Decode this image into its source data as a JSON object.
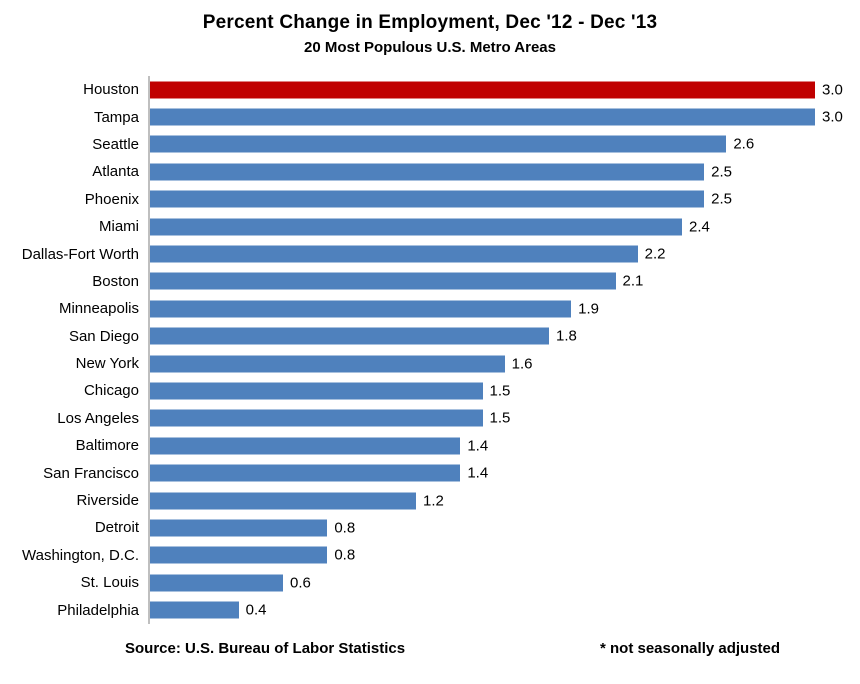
{
  "title": "Percent Change in Employment, Dec '12 - Dec '13",
  "subtitle": "20 Most Populous U.S. Metro Areas",
  "footer": {
    "source": "Source: U.S. Bureau of Labor Statistics",
    "note": "* not seasonally adjusted"
  },
  "colors": {
    "bar": "#4F81BD",
    "highlight": "#C00000",
    "axis": "#BFBFBF",
    "text": "#000000",
    "background": "#FFFFFF"
  },
  "chart_data": {
    "type": "bar",
    "orientation": "horizontal",
    "title": "Percent Change in Employment, Dec '12 - Dec '13",
    "subtitle": "20 Most Populous U.S. Metro Areas",
    "xlabel": "",
    "ylabel": "",
    "xlim": [
      0,
      3.0
    ],
    "grid": false,
    "legend": false,
    "value_labels": true,
    "value_decimals": 1,
    "highlight_category": "Houston",
    "categories": [
      "Houston",
      "Tampa",
      "Seattle",
      "Atlanta",
      "Phoenix",
      "Miami",
      "Dallas-Fort Worth",
      "Boston",
      "Minneapolis",
      "San Diego",
      "New York",
      "Chicago",
      "Los Angeles",
      "Baltimore",
      "San Francisco",
      "Riverside",
      "Detroit",
      "Washington, D.C.",
      "St. Louis",
      "Philadelphia"
    ],
    "values": [
      3.0,
      3.0,
      2.6,
      2.5,
      2.5,
      2.4,
      2.2,
      2.1,
      1.9,
      1.8,
      1.6,
      1.5,
      1.5,
      1.4,
      1.4,
      1.2,
      0.8,
      0.8,
      0.6,
      0.4
    ]
  }
}
